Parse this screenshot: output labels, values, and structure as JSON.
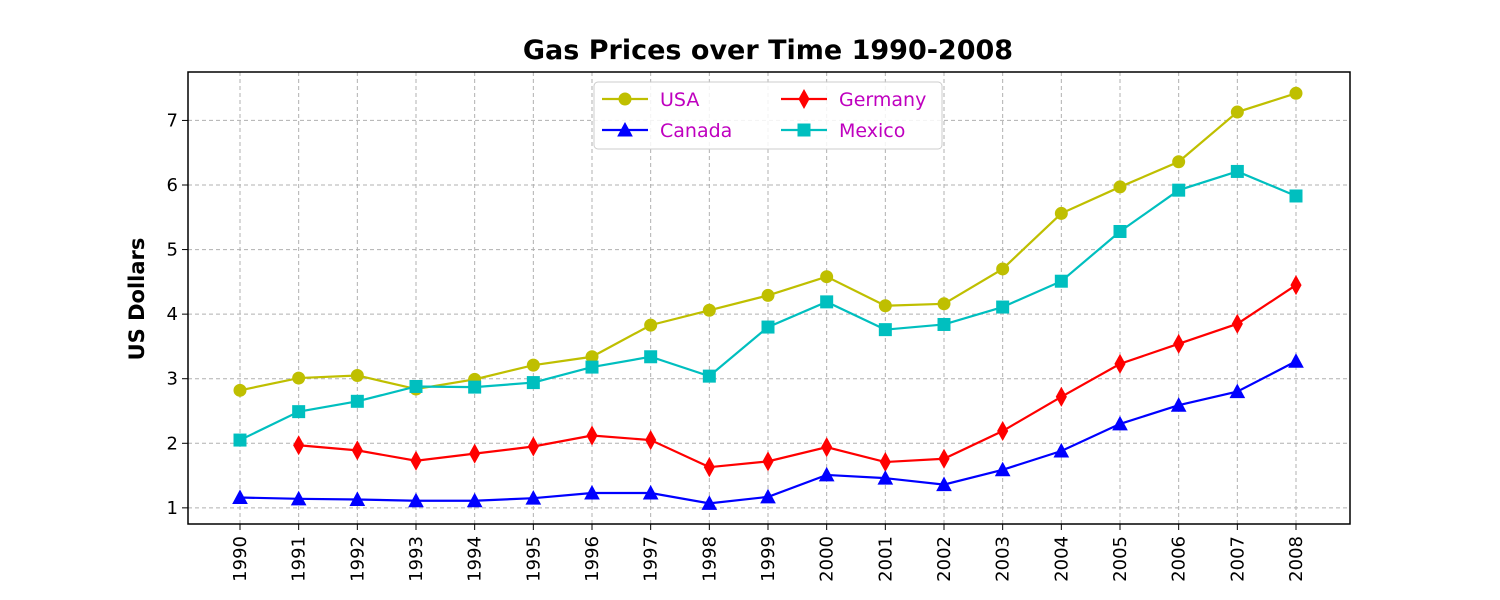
{
  "chart_data": {
    "type": "line",
    "title": "Gas Prices over Time 1990-2008",
    "xlabel": "",
    "ylabel": "US Dollars",
    "x": [
      1990,
      1991,
      1992,
      1993,
      1994,
      1995,
      1996,
      1997,
      1998,
      1999,
      2000,
      2001,
      2002,
      2003,
      2004,
      2005,
      2006,
      2007,
      2008
    ],
    "x_tick_labels": [
      "1990",
      "1991",
      "1992",
      "1993",
      "1994",
      "1995",
      "1996",
      "1997",
      "1998",
      "1999",
      "2000",
      "2001",
      "2002",
      "2003",
      "2004",
      "2005",
      "2006",
      "2007",
      "2008"
    ],
    "ylim": [
      0.75,
      7.75
    ],
    "y_ticks": [
      1,
      2,
      3,
      4,
      5,
      6,
      7
    ],
    "y_tick_labels": [
      "1",
      "2",
      "3",
      "4",
      "5",
      "6",
      "7"
    ],
    "x_tick_rotation": "vertical",
    "grid": true,
    "grid_style": "dashed",
    "legend_placement": "upper-center",
    "legend_columns": 2,
    "legend_text_color": "#bf00bf",
    "series": [
      {
        "name": "USA",
        "color": "#bfbf00",
        "marker": "circle",
        "values": [
          2.82,
          3.01,
          3.05,
          2.84,
          2.99,
          3.21,
          3.34,
          3.83,
          4.06,
          4.29,
          4.58,
          4.13,
          4.16,
          4.7,
          5.56,
          5.97,
          6.36,
          7.13,
          7.42
        ]
      },
      {
        "name": "Germany",
        "color": "#ff0000",
        "marker": "thin-diamond",
        "values": [
          null,
          1.97,
          1.89,
          1.73,
          1.84,
          1.95,
          2.12,
          2.05,
          1.63,
          1.72,
          1.94,
          1.71,
          1.76,
          2.19,
          2.72,
          3.23,
          3.54,
          3.85,
          4.45
        ]
      },
      {
        "name": "Canada",
        "color": "#0000ff",
        "marker": "triangle-up",
        "values": [
          1.16,
          1.14,
          1.13,
          1.11,
          1.11,
          1.15,
          1.23,
          1.23,
          1.07,
          1.17,
          1.51,
          1.46,
          1.36,
          1.59,
          1.88,
          2.3,
          2.59,
          2.8,
          3.27
        ]
      },
      {
        "name": "Mexico",
        "color": "#00bfbf",
        "marker": "square",
        "values": [
          2.05,
          2.49,
          2.65,
          2.88,
          2.87,
          2.94,
          3.18,
          3.34,
          3.04,
          3.8,
          4.19,
          3.76,
          3.84,
          4.11,
          4.51,
          5.28,
          5.92,
          6.21,
          5.83
        ]
      }
    ]
  }
}
